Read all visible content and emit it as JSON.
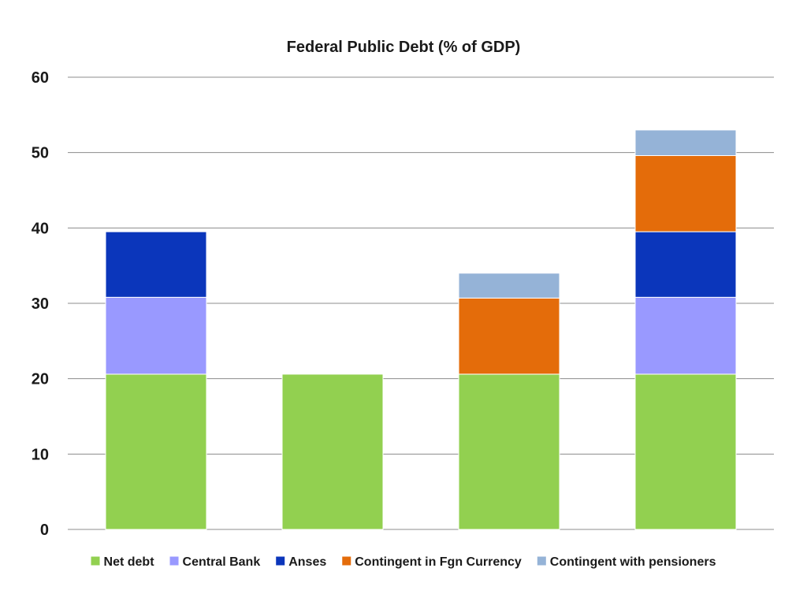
{
  "chart_data": {
    "type": "bar",
    "stacked": true,
    "title": "Federal Public Debt (% of GDP)",
    "xlabel": "",
    "ylabel": "",
    "ylim": [
      0,
      60
    ],
    "yticks": [
      0,
      10,
      20,
      30,
      40,
      50,
      60
    ],
    "grid": true,
    "legend_position": "bottom",
    "categories": [
      "",
      "",
      "",
      ""
    ],
    "series": [
      {
        "name": "Net debt",
        "color": "#92d050",
        "values": [
          20.6,
          20.6,
          20.6,
          20.6
        ]
      },
      {
        "name": "Central Bank",
        "color": "#9999ff",
        "values": [
          10.2,
          0,
          0,
          10.2
        ]
      },
      {
        "name": "Anses",
        "color": "#0b36bb",
        "values": [
          8.7,
          0,
          0,
          8.7
        ]
      },
      {
        "name": "Contingent in Fgn Currency",
        "color": "#e46c0a",
        "values": [
          0,
          0,
          10.1,
          10.1
        ]
      },
      {
        "name": "Contingent with pensioners",
        "color": "#95b3d7",
        "values": [
          0,
          0,
          3.3,
          3.4
        ]
      }
    ]
  }
}
